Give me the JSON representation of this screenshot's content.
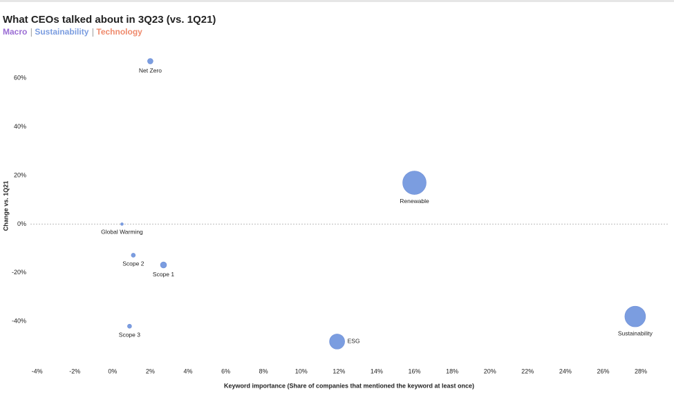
{
  "chart_data": {
    "type": "bubble",
    "title": "What CEOs talked about in 3Q23 (vs. 1Q21)",
    "legend": [
      {
        "name": "Macro",
        "color": "#9a6cd4"
      },
      {
        "name": "Sustainability",
        "color": "#7b9de0"
      },
      {
        "name": "Technology",
        "color": "#ef8a6c"
      }
    ],
    "x_label": "Keyword importance (Share of companies that mentioned the keyword at least once)",
    "y_label": "Change vs. 1Q21",
    "color": "#7b9de0",
    "labels": [
      "Net Zero",
      "Renewable",
      "Global Warming",
      "Scope 2",
      "Scope 1",
      "Scope 3",
      "ESG",
      "Sustainability"
    ],
    "x": [
      2.0,
      16.0,
      0.5,
      1.1,
      2.7,
      0.9,
      11.9,
      27.7
    ],
    "values": [
      67,
      17,
      0,
      -12.8,
      -16.8,
      -42,
      -48.3,
      -38
    ],
    "sizes": [
      16,
      289,
      4,
      9,
      20,
      9,
      121,
      225
    ],
    "xlim": [
      -4.5,
      29.5
    ],
    "ylim": [
      -57,
      70
    ],
    "xticks": [
      {
        "value": -4,
        "label": "-4%"
      },
      {
        "value": -2,
        "label": "-2%"
      },
      {
        "value": 0,
        "label": "0%"
      },
      {
        "value": 2,
        "label": "2%"
      },
      {
        "value": 4,
        "label": "4%"
      },
      {
        "value": 6,
        "label": "6%"
      },
      {
        "value": 8,
        "label": "8%"
      },
      {
        "value": 10,
        "label": "10%"
      },
      {
        "value": 12,
        "label": "12%"
      },
      {
        "value": 14,
        "label": "14%"
      },
      {
        "value": 16,
        "label": "16%"
      },
      {
        "value": 18,
        "label": "18%"
      },
      {
        "value": 20,
        "label": "20%"
      },
      {
        "value": 22,
        "label": "22%"
      },
      {
        "value": 24,
        "label": "24%"
      },
      {
        "value": 26,
        "label": "26%"
      },
      {
        "value": 28,
        "label": "28%"
      }
    ],
    "yticks": [
      {
        "value": -40,
        "label": "-40%"
      },
      {
        "value": -20,
        "label": "-20%"
      },
      {
        "value": 0,
        "label": "0%"
      },
      {
        "value": 20,
        "label": "20%"
      },
      {
        "value": 40,
        "label": "40%"
      },
      {
        "value": 60,
        "label": "60%"
      }
    ]
  }
}
